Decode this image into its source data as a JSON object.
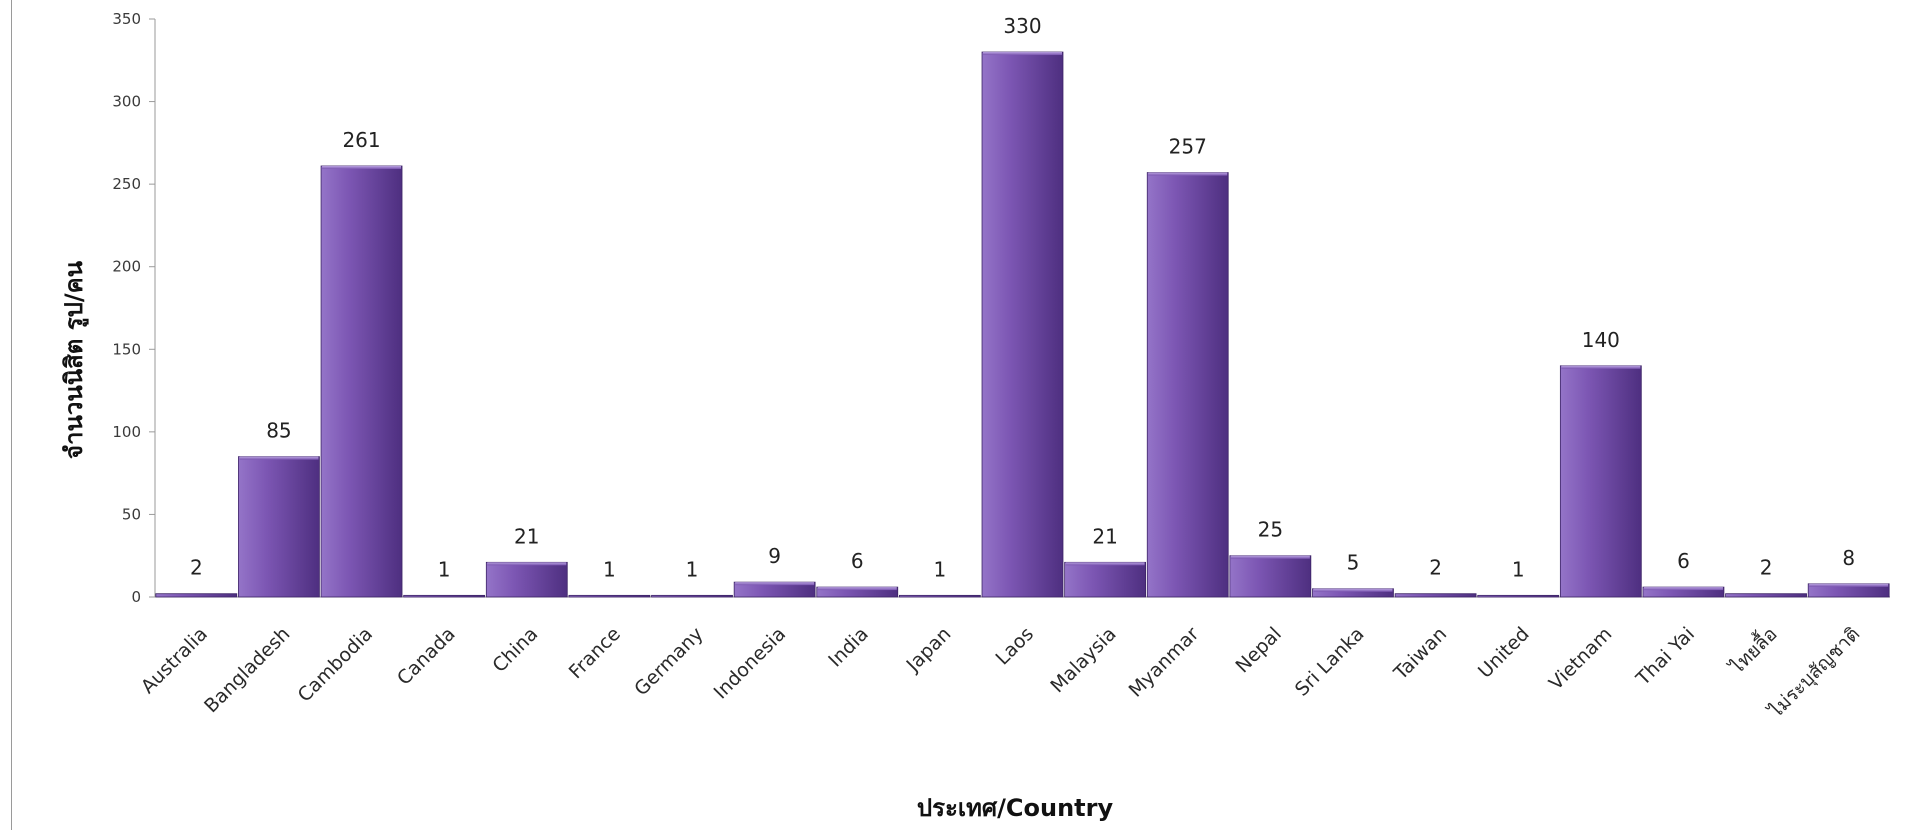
{
  "chart_data": {
    "type": "bar",
    "title": "",
    "xlabel": "ประเทศ/Country",
    "ylabel": "จำนวนนิสิต รูป/คน",
    "ylim": [
      0,
      350
    ],
    "yticks": [
      0,
      50,
      100,
      150,
      200,
      250,
      300,
      350
    ],
    "grid": false,
    "legend": "none",
    "categories": [
      "Australia",
      "Bangladesh",
      "Cambodia",
      "Canada",
      "China",
      "France",
      "Germany",
      "Indonesia",
      "India",
      "Japan",
      "Laos",
      "Malaysia",
      "Myanmar",
      "Nepal",
      "Sri Lanka",
      "Taiwan",
      "United",
      "Vietnam",
      "Thai Yai",
      "ไทยลื้อ",
      "ไม่ระบุสัญชาติ"
    ],
    "values": [
      2,
      85,
      261,
      1,
      21,
      1,
      1,
      9,
      6,
      1,
      330,
      21,
      257,
      25,
      5,
      2,
      1,
      140,
      6,
      2,
      8
    ],
    "colors": {
      "bar_light": "#9474c8",
      "bar_mid": "#7c56b3",
      "bar_dark": "#4e2f80",
      "bar_edge": "#3d2466",
      "axis": "#9a9a9a"
    }
  }
}
